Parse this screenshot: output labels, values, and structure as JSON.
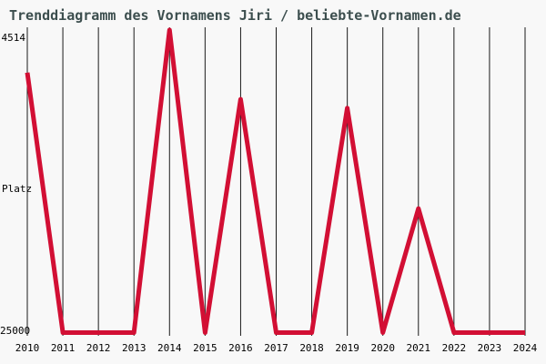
{
  "title": "Trenddiagramm des Vornamens Jiri / beliebte-Vornamen.de",
  "colors": {
    "background": "#f8f8f8",
    "line": "#d20f34",
    "title_text": "#3c4e4e",
    "grid": "#1a1a1a",
    "axis_text": "#000000"
  },
  "chart_data": {
    "type": "line",
    "title": "Trenddiagramm des Vornamens Jiri / beliebte-Vornamen.de",
    "xlabel": "",
    "ylabel": "Platz",
    "x": [
      2010,
      2011,
      2012,
      2013,
      2014,
      2015,
      2016,
      2017,
      2018,
      2019,
      2020,
      2021,
      2022,
      2023,
      2024
    ],
    "series": [
      {
        "name": "Jiri",
        "values": [
          7400,
          25000,
          25000,
          25000,
          4514,
          25000,
          9200,
          25000,
          25000,
          9800,
          25000,
          16600,
          25000,
          25000,
          25000
        ]
      }
    ],
    "y_axis": {
      "label": "Platz",
      "inverted": true,
      "min": 4514,
      "max": 25000,
      "top_tick": "4514",
      "bottom_tick": "25000"
    },
    "x_axis": {
      "ticks": [
        "2010",
        "2011",
        "2012",
        "2013",
        "2014",
        "2015",
        "2016",
        "2017",
        "2018",
        "2019",
        "2020",
        "2021",
        "2022",
        "2023",
        "2024"
      ]
    },
    "legend": "none",
    "grid": "vertical-only"
  }
}
